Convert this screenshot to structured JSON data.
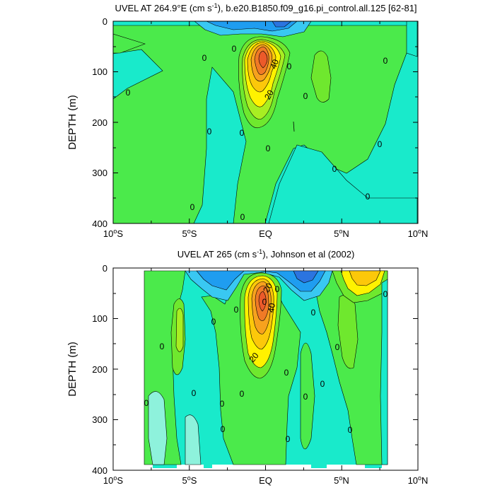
{
  "chart_data": [
    {
      "type": "heatmap",
      "subtype": "filled-contour",
      "title_main": "UVEL AT 264.9°E (cm s",
      "title_sup": "-1",
      "title_rest": "), b.e20.B1850.f09_g16.pi_control.all.125 [62-81]",
      "ylabel": "DEPTH (m)",
      "xlabel": "",
      "ylim": [
        400,
        0
      ],
      "xlim": [
        -10,
        10
      ],
      "y_ticks": [
        "0",
        "100",
        "200",
        "300",
        "400"
      ],
      "x_ticks": [
        {
          "main": "10",
          "sup": "o",
          "suffix": "S"
        },
        {
          "main": "5",
          "sup": "o",
          "suffix": "S"
        },
        {
          "main": "EQ",
          "sup": "",
          "suffix": ""
        },
        {
          "main": "5",
          "sup": "o",
          "suffix": "N"
        },
        {
          "main": "10",
          "sup": "o",
          "suffix": "N"
        }
      ],
      "contour_labels": [
        "0",
        "0",
        "0",
        "0",
        "0",
        "40",
        "0",
        "20",
        "0",
        "0",
        "0",
        "0",
        "0",
        "0",
        "0",
        "0",
        "0",
        "0"
      ],
      "contour_interval": 10,
      "value_range_estimate": [
        -40,
        90
      ],
      "core_max_depth_m": 80,
      "core_max_lat": 0
    },
    {
      "type": "heatmap",
      "subtype": "filled-contour",
      "title_main": "UVEL AT 265 (cm s",
      "title_sup": "-1",
      "title_rest": "), Johnson et al (2002)",
      "ylabel": "DEPTH (m)",
      "xlabel": "",
      "ylim": [
        400,
        0
      ],
      "xlim": [
        -10,
        10
      ],
      "data_lat_range": [
        -8,
        8
      ],
      "y_ticks": [
        "0",
        "100",
        "200",
        "300",
        "400"
      ],
      "x_ticks": [
        {
          "main": "10",
          "sup": "o",
          "suffix": "S"
        },
        {
          "main": "5",
          "sup": "o",
          "suffix": "S"
        },
        {
          "main": "EQ",
          "sup": "",
          "suffix": ""
        },
        {
          "main": "5",
          "sup": "o",
          "suffix": "N"
        },
        {
          "main": "10",
          "sup": "o",
          "suffix": "N"
        }
      ],
      "contour_labels": [
        "0",
        "20",
        "0",
        "0",
        "40",
        "0",
        "0",
        "0",
        "0",
        "0",
        "0",
        "0",
        "0",
        "0",
        "20",
        "0",
        "0",
        "0",
        "0",
        "0",
        "0",
        "0"
      ],
      "contour_interval": 10,
      "value_range_estimate": [
        -40,
        90
      ],
      "core_max_depth_m": 70,
      "core_max_lat": 0
    }
  ],
  "colors": {
    "cyan_light": "#8ef2dc",
    "cyan": "#19eacb",
    "sky": "#39c8f2",
    "blue": "#1f9df0",
    "blue_dark": "#2b74e0",
    "green": "#4bea4b",
    "green_mid": "#6fe82e",
    "green_yellow": "#a8ee22",
    "yellow": "#fff200",
    "orange_light": "#fcc80a",
    "orange": "#f7a21e",
    "orange_dark": "#f07a26",
    "red_orange": "#ec5a2a",
    "white": "#ffffff"
  }
}
